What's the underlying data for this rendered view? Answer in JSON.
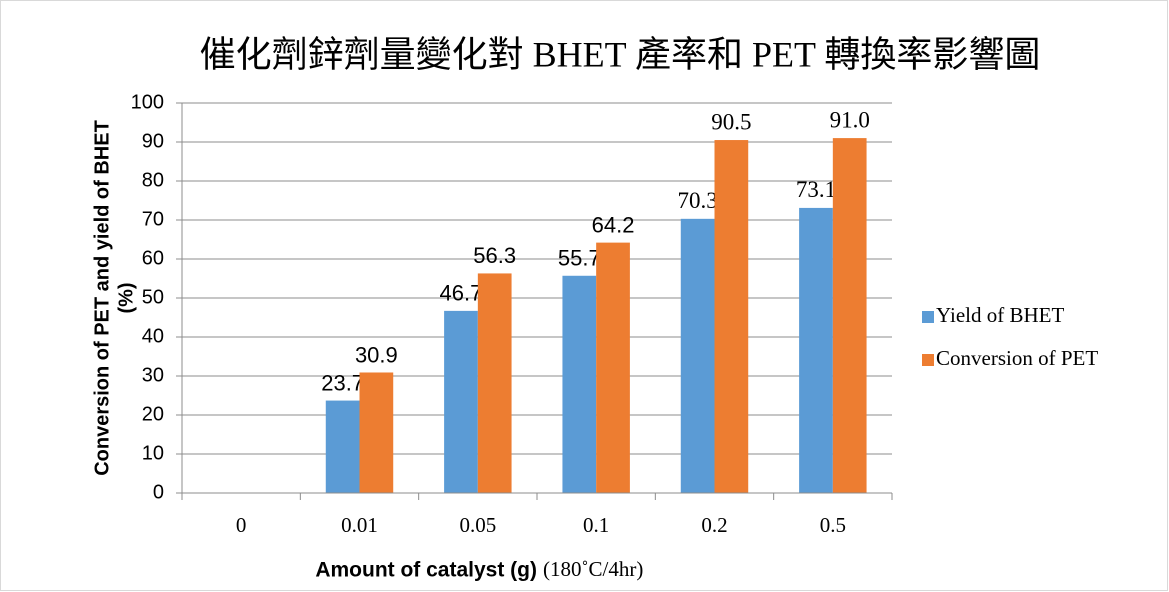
{
  "chart_data": {
    "type": "bar",
    "title": "催化劑鋅劑量變化對 BHET 產率和 PET 轉換率影響圖",
    "xlabel": [
      "Amount of catalyst (g)",
      "(180˚C/4hr)"
    ],
    "ylabel": [
      "Conversion of PET and yield of BHET",
      "(%)"
    ],
    "categories": [
      "0",
      "0.01",
      "0.05",
      "0.1",
      "0.2",
      "0.5"
    ],
    "series": [
      {
        "name": "Yield of BHET",
        "color": "#5b9bd5",
        "values": [
          null,
          23.7,
          46.7,
          55.7,
          70.3,
          73.1
        ],
        "value_labels": [
          null,
          "23.7",
          "46.7",
          "55.7",
          "70.3",
          "73.1"
        ]
      },
      {
        "name": "Conversion of PET",
        "color": "#ed7d31",
        "values": [
          null,
          30.9,
          56.3,
          64.2,
          90.5,
          91.0
        ],
        "value_labels": [
          null,
          "30.9",
          "56.3",
          "64.2",
          "90.5",
          "91.0"
        ]
      }
    ],
    "ylim": [
      0,
      100
    ],
    "yticks": [
      0,
      10,
      20,
      30,
      40,
      50,
      60,
      70,
      80,
      90,
      100
    ],
    "grid": true,
    "legend": "right"
  }
}
